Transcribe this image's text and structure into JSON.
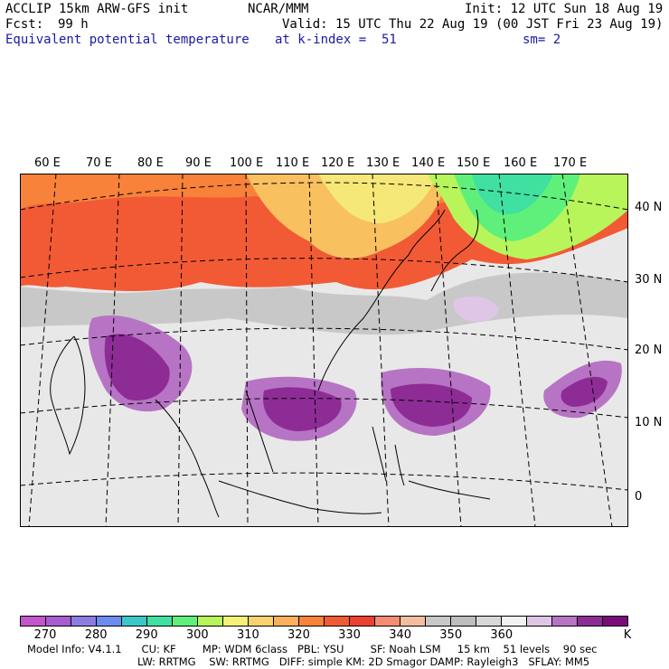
{
  "header": {
    "model_title": "ACCLIP 15km ARW-GFS init",
    "center": "NCAR/MMM",
    "init_time": "Init: 12 UTC Sun 18 Aug 19",
    "fcst_label": "Fcst:",
    "fcst_value": "99 h",
    "valid_time": "Valid: 15 UTC Thu 22 Aug 19 (00 JST Fri 23 Aug 19)",
    "field_name": "Equivalent potential temperature",
    "level": "at k-index =  51",
    "smoothing": "sm= 2"
  },
  "map": {
    "longitude_labels": [
      "60 E",
      "70 E",
      "80 E",
      "90 E",
      "100 E",
      "110 E",
      "120 E",
      "130 E",
      "140 E",
      "150 E",
      "160 E",
      "170 E"
    ],
    "latitude_labels": [
      "40 N",
      "30 N",
      "20 N",
      "10 N",
      "0"
    ]
  },
  "colorbar": {
    "colors": [
      "#c455cc",
      "#a85ccf",
      "#8b7ce0",
      "#6c8cf0",
      "#3cc6c6",
      "#3fe0a0",
      "#5ef07a",
      "#b8f55a",
      "#f5f078",
      "#f9d270",
      "#f8b05a",
      "#f8823a",
      "#f25a36",
      "#ee4030",
      "#f38c70",
      "#f3bea0",
      "#c8c8c8",
      "#bdbdbd",
      "#d8d8d8",
      "#f2f2f2",
      "#e0c6e6",
      "#b774c4",
      "#8e2c96",
      "#7a0c7a"
    ],
    "labels": [
      "270",
      "280",
      "290",
      "300",
      "310",
      "320",
      "330",
      "340",
      "350",
      "360"
    ],
    "unit": "K"
  },
  "model_info": {
    "line1": "Model Info: V4.1.1      CU: KF        MP: WDM 6class   PBL: YSU        SF: Noah LSM     15 km    51 levels    90 sec",
    "line2": "LW: RRTMG    SW: RRTMG   DIFF: simple KM: 2D Smagor DAMP: Rayleigh3   SFLAY: MM5"
  }
}
